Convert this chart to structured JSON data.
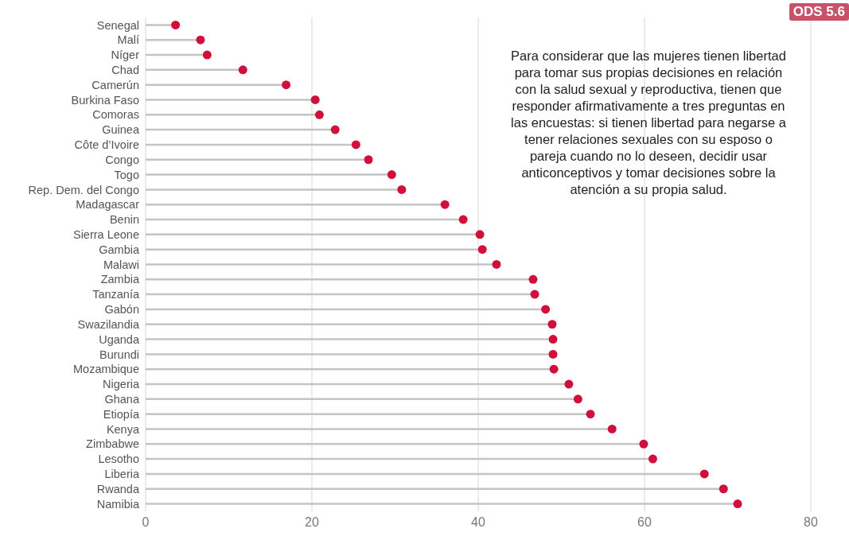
{
  "chart_data": {
    "type": "lollipop",
    "orientation": "horizontal",
    "categories": [
      "Senegal",
      "Malí",
      "Níger",
      "Chad",
      "Camerún",
      "Burkina Faso",
      "Comoras",
      "Guinea",
      "Côte d’Ivoire",
      "Congo",
      "Togo",
      "Rep. Dem. del Congo",
      "Madagascar",
      "Benin",
      "Sierra Leone",
      "Gambia",
      "Malawi",
      "Zambia",
      "Tanzanía",
      "Gabón",
      "Swazilandia",
      "Uganda",
      "Burundi",
      "Mozambique",
      "Nigeria",
      "Ghana",
      "Etiopía",
      "Kenya",
      "Zimbabwe",
      "Lesotho",
      "Liberia",
      "Rwanda",
      "Namibia"
    ],
    "values": [
      3.6,
      6.6,
      7.4,
      11.7,
      16.9,
      20.4,
      20.9,
      22.8,
      25.3,
      26.8,
      29.6,
      30.8,
      36.0,
      38.2,
      40.2,
      40.5,
      42.2,
      46.6,
      46.8,
      48.1,
      48.9,
      49.0,
      49.0,
      49.1,
      50.9,
      52.0,
      53.5,
      56.1,
      59.9,
      61.0,
      67.2,
      69.5,
      71.2
    ],
    "color": "#d0103a",
    "marker": "circle",
    "xlim": [
      0,
      80
    ],
    "xticks": [
      0,
      20,
      40,
      60,
      80
    ],
    "grid": "x",
    "annotations": [
      "ODS 5.6",
      "Para considerar que las mujeres tienen libertad para tomar sus propias decisiones en relación con la salud sexual y reproductiva, tienen que responder afirmativamente a tres preguntas en las encuestas: si tienen libertad para negarse a tener relaciones sexuales con su esposo o pareja cuando no lo deseen, decidir usar anticonceptivos y tomar decisiones sobre la atención a su propia salud."
    ]
  }
}
